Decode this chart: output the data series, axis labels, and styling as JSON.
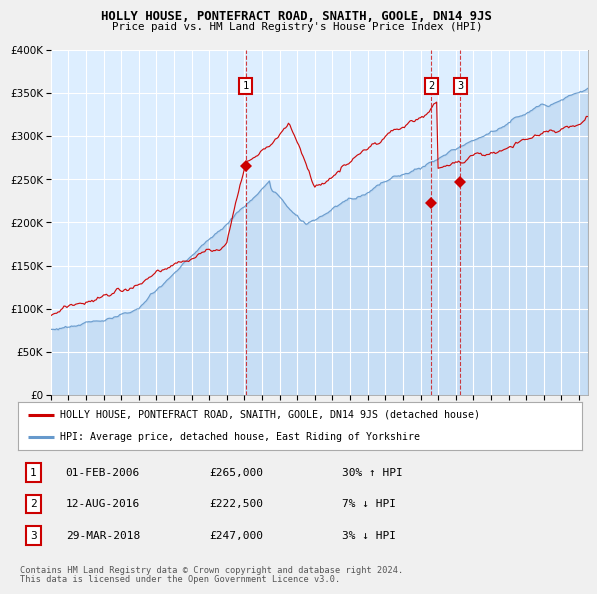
{
  "title": "HOLLY HOUSE, PONTEFRACT ROAD, SNAITH, GOOLE, DN14 9JS",
  "subtitle": "Price paid vs. HM Land Registry's House Price Index (HPI)",
  "legend_line1": "HOLLY HOUSE, PONTEFRACT ROAD, SNAITH, GOOLE, DN14 9JS (detached house)",
  "legend_line2": "HPI: Average price, detached house, East Riding of Yorkshire",
  "transaction_dates_decimal": [
    2006.083,
    2016.614,
    2018.247
  ],
  "transaction_prices": [
    265000,
    222500,
    247000
  ],
  "table_rows": [
    [
      "1",
      "01-FEB-2006",
      "£265,000",
      "30% ↑ HPI"
    ],
    [
      "2",
      "12-AUG-2016",
      "£222,500",
      "7% ↓ HPI"
    ],
    [
      "3",
      "29-MAR-2018",
      "£247,000",
      "3% ↓ HPI"
    ]
  ],
  "footer1": "Contains HM Land Registry data © Crown copyright and database right 2024.",
  "footer2": "This data is licensed under the Open Government Licence v3.0.",
  "red_color": "#cc0000",
  "blue_color": "#6699cc",
  "bg_color": "#ddeeff",
  "ylim": [
    0,
    400000
  ],
  "xlim_start": 1995.0,
  "xlim_end": 2025.5
}
